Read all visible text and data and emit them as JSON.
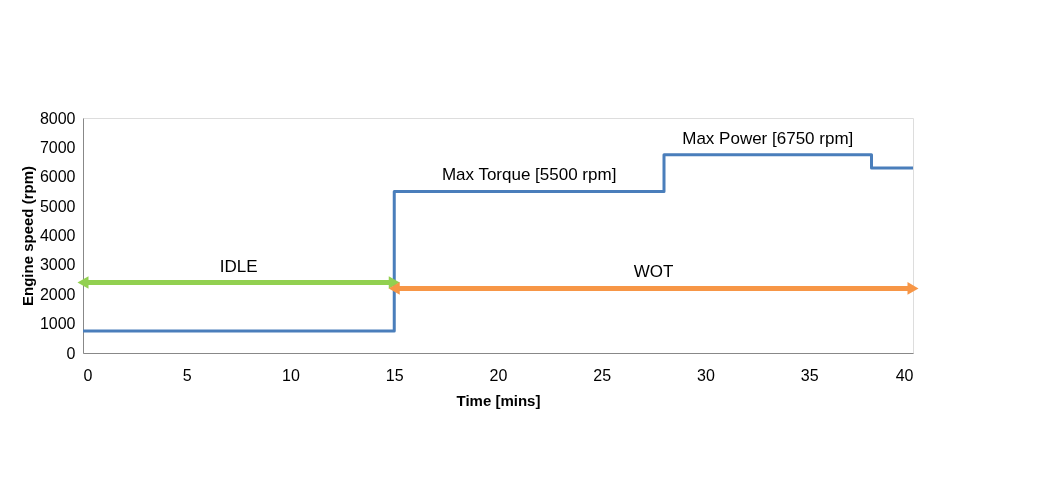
{
  "chart_data": {
    "type": "step",
    "xlabel": "Time [mins]",
    "ylabel": "Engine speed (rpm)",
    "x": [
      0,
      15,
      28,
      38,
      40
    ],
    "series": [
      {
        "color": "#4a7ebb",
        "values": [
          750,
          5500,
          6750,
          6300,
          6300
        ]
      },
      {
        "type": "line",
        "x": [
          0,
          15
        ],
        "color": "#92d050",
        "values": [
          2400,
          2400
        ],
        "marker": "triangle"
      },
      {
        "type": "line",
        "x": [
          15,
          40
        ],
        "color": "#f79646",
        "values": [
          2200,
          2200
        ],
        "marker": "triangle"
      }
    ],
    "xlim": [
      0,
      40
    ],
    "xticks": [
      0,
      5,
      10,
      15,
      20,
      25,
      30,
      35,
      40
    ],
    "ylim": [
      0,
      8000
    ],
    "yticks": [
      0,
      1000,
      2000,
      3000,
      4000,
      5000,
      6000,
      7000,
      8000
    ],
    "grid": false,
    "marker": "none",
    "line_style": "solid",
    "annotations": [
      {
        "text": "IDLE",
        "x": 7.5,
        "y": 2400
      },
      {
        "text": "WOT",
        "x": 27.5,
        "y": 2200
      },
      {
        "text": "Max Torque [5500 rpm]",
        "x": 21.5,
        "y": 5500
      },
      {
        "text": "Max Power [6750 rpm]",
        "x": 33,
        "y": 6750
      }
    ]
  }
}
